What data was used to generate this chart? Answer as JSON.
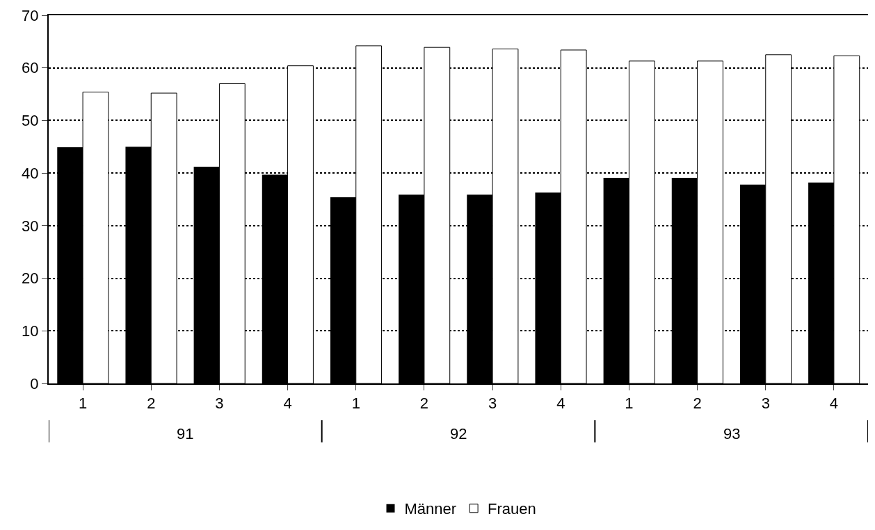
{
  "chart_data": {
    "type": "bar",
    "categories": [
      "1",
      "2",
      "3",
      "4",
      "1",
      "2",
      "3",
      "4",
      "1",
      "2",
      "3",
      "4"
    ],
    "series": [
      {
        "name": "Männer",
        "color": "#000000",
        "values": [
          44.9,
          45.0,
          41.2,
          39.7,
          35.4,
          35.9,
          35.9,
          36.3,
          39.1,
          39.1,
          37.8,
          38.2
        ]
      },
      {
        "name": "Frauen",
        "color": "#ffffff",
        "values": [
          55.4,
          55.2,
          57.0,
          60.4,
          64.2,
          63.9,
          63.6,
          63.4,
          61.3,
          61.3,
          62.5,
          62.3
        ]
      }
    ],
    "annotations": [
      "91",
      "92",
      "93"
    ],
    "ylim": [
      0,
      70
    ],
    "yticks": [
      0,
      10,
      20,
      30,
      40,
      50,
      60,
      70
    ],
    "grid": "y",
    "legend": "bottom"
  }
}
